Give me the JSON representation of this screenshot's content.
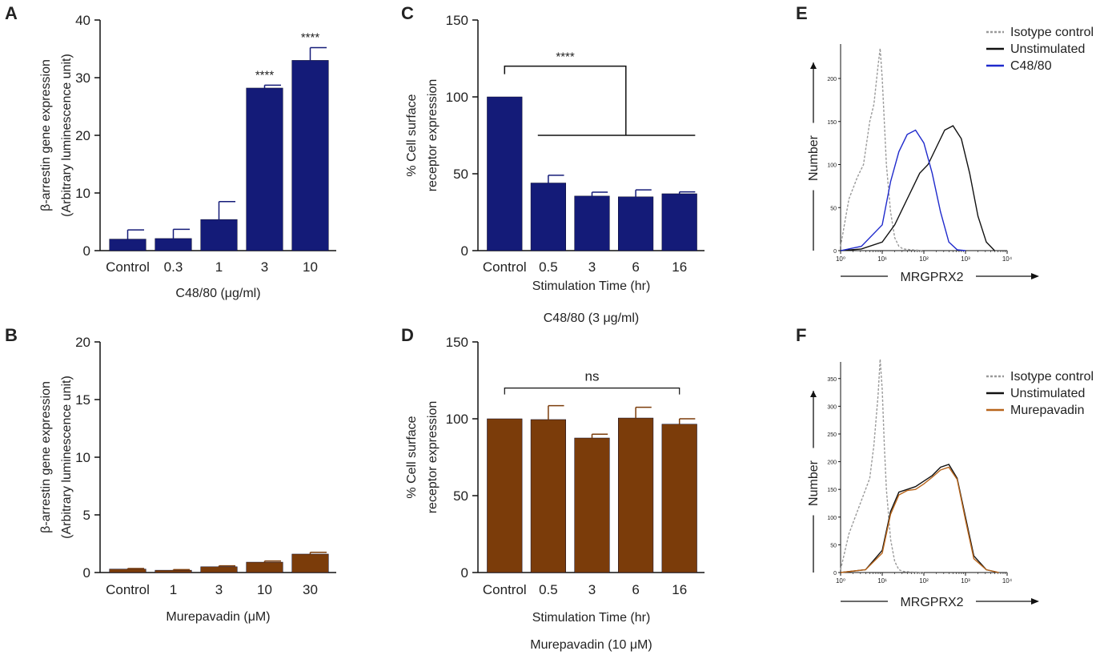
{
  "colors": {
    "navy": "#141B78",
    "brown": "#7B3C0A",
    "blue_line": "#1F2ACC",
    "orange_line": "#B8651B",
    "gray_dash": "#9A9A9A",
    "black": "#111111"
  },
  "chart_data": [
    {
      "id": "A",
      "panel_letter": "A",
      "type": "bar",
      "title": "",
      "ylabel_line1": "β-arrestin gene expression",
      "ylabel_line2": "(Arbitrary luminescence unit)",
      "xlabel": "C48/80 (μg/ml)",
      "categories": [
        "Control",
        "0.3",
        "1",
        "3",
        "10"
      ],
      "values": [
        2.0,
        2.1,
        5.4,
        28.2,
        33.0
      ],
      "errors": [
        1.6,
        1.6,
        3.1,
        0.5,
        2.2
      ],
      "annotations": [
        "",
        "",
        "",
        "****",
        "****"
      ],
      "ylim": [
        0,
        40
      ],
      "yticks": [
        "0",
        "10",
        "20",
        "30",
        "40"
      ],
      "color": "navy"
    },
    {
      "id": "B",
      "panel_letter": "B",
      "type": "bar",
      "title": "",
      "ylabel_line1": "β-arrestin gene expression",
      "ylabel_line2": "(Arbitrary luminescence unit)",
      "xlabel": "Murepavadin (μM)",
      "categories": [
        "Control",
        "1",
        "3",
        "10",
        "30"
      ],
      "values": [
        0.3,
        0.2,
        0.5,
        0.9,
        1.6
      ],
      "errors": [
        0.05,
        0.05,
        0.08,
        0.1,
        0.15
      ],
      "annotations": [
        "",
        "",
        "",
        "",
        ""
      ],
      "ylim": [
        0,
        20
      ],
      "yticks": [
        "0",
        "5",
        "10",
        "15",
        "20"
      ],
      "color": "brown"
    },
    {
      "id": "C",
      "panel_letter": "C",
      "type": "bar",
      "title": "",
      "ylabel_line1": "% Cell surface",
      "ylabel_line2": "receptor expression",
      "xlabel": "Stimulation Time (hr)",
      "xlabel2": "C48/80 (3 μg/ml)",
      "categories": [
        "Control",
        "0.5",
        "3",
        "6",
        "16"
      ],
      "values": [
        100,
        44,
        35.5,
        35,
        37
      ],
      "errors": [
        0,
        5,
        2.5,
        4.5,
        1.2
      ],
      "bracket_label": "****",
      "bracket_style": "group",
      "ylim": [
        0,
        150
      ],
      "yticks": [
        "0",
        "50",
        "100",
        "150"
      ],
      "color": "navy"
    },
    {
      "id": "D",
      "panel_letter": "D",
      "type": "bar",
      "title": "",
      "ylabel_line1": "% Cell surface",
      "ylabel_line2": "receptor expression",
      "xlabel": "Stimulation Time (hr)",
      "xlabel2": "Murepavadin (10 μM)",
      "categories": [
        "Control",
        "0.5",
        "3",
        "6",
        "16"
      ],
      "values": [
        100,
        99.5,
        87.5,
        100.5,
        96.5
      ],
      "errors": [
        0,
        9,
        2.5,
        7,
        3.5
      ],
      "bracket_label": "ns",
      "bracket_style": "simple",
      "ylim": [
        0,
        150
      ],
      "yticks": [
        "0",
        "50",
        "100",
        "150"
      ],
      "color": "brown"
    },
    {
      "id": "E",
      "panel_letter": "E",
      "type": "line",
      "ylabel": "Number",
      "xlabel": "MRGPRX2",
      "xticks": [
        "10⁰",
        "10¹",
        "10²",
        "10³",
        "10⁴"
      ],
      "yticks": [
        "0",
        "50",
        "100",
        "150",
        "200"
      ],
      "ylim": [
        0,
        240
      ],
      "legend": [
        "Isotype control",
        "Unstimulated",
        "C48/80"
      ],
      "legend_colors": [
        "gray_dash",
        "black",
        "blue_line"
      ],
      "series": [
        {
          "name": "Isotype control",
          "style": "dashed",
          "color": "gray_dash",
          "x": [
            0,
            0.2,
            0.4,
            0.55,
            0.7,
            0.8,
            0.9,
            0.95,
            1.0,
            1.05,
            1.1,
            1.2,
            1.3,
            1.4,
            1.5,
            1.7,
            2.0
          ],
          "y": [
            5,
            60,
            85,
            100,
            150,
            170,
            215,
            235,
            200,
            150,
            100,
            45,
            15,
            5,
            2,
            1,
            0
          ]
        },
        {
          "name": "Unstimulated",
          "style": "solid",
          "color": "black",
          "x": [
            0,
            0.5,
            1.0,
            1.3,
            1.6,
            1.9,
            2.1,
            2.3,
            2.5,
            2.7,
            2.9,
            3.1,
            3.3,
            3.5,
            3.7
          ],
          "y": [
            0,
            2,
            10,
            30,
            60,
            90,
            100,
            120,
            140,
            145,
            130,
            90,
            40,
            10,
            0
          ]
        },
        {
          "name": "C48/80",
          "style": "solid",
          "color": "blue_line",
          "x": [
            0,
            0.5,
            1.0,
            1.2,
            1.4,
            1.6,
            1.8,
            2.0,
            2.2,
            2.4,
            2.6,
            2.8,
            3.0
          ],
          "y": [
            0,
            5,
            30,
            80,
            115,
            135,
            140,
            125,
            90,
            45,
            10,
            1,
            0
          ]
        }
      ]
    },
    {
      "id": "F",
      "panel_letter": "F",
      "type": "line",
      "ylabel": "Number",
      "xlabel": "MRGPRX2",
      "xticks": [
        "10⁰",
        "10¹",
        "10²",
        "10³",
        "10⁴"
      ],
      "yticks": [
        "0",
        "50",
        "100",
        "150",
        "200",
        "250",
        "300",
        "350"
      ],
      "ylim": [
        0,
        380
      ],
      "legend": [
        "Isotype control",
        "Unstimulated",
        "Murepavadin"
      ],
      "legend_colors": [
        "gray_dash",
        "black",
        "orange_line"
      ],
      "series": [
        {
          "name": "Isotype control",
          "style": "dashed",
          "color": "gray_dash",
          "x": [
            0,
            0.2,
            0.4,
            0.55,
            0.7,
            0.8,
            0.9,
            0.95,
            1.0,
            1.05,
            1.1,
            1.2,
            1.3,
            1.4,
            1.5,
            1.7,
            2.0
          ],
          "y": [
            5,
            70,
            110,
            140,
            170,
            230,
            320,
            385,
            330,
            230,
            150,
            60,
            20,
            5,
            2,
            1,
            0
          ]
        },
        {
          "name": "Unstimulated",
          "style": "solid",
          "color": "black",
          "x": [
            0,
            0.6,
            1.0,
            1.2,
            1.4,
            1.6,
            1.8,
            2.0,
            2.2,
            2.4,
            2.6,
            2.8,
            3.0,
            3.2,
            3.5,
            3.8
          ],
          "y": [
            0,
            5,
            40,
            110,
            145,
            150,
            155,
            165,
            175,
            190,
            195,
            170,
            100,
            30,
            5,
            0
          ]
        },
        {
          "name": "Murepavadin",
          "style": "solid",
          "color": "orange_line",
          "x": [
            0,
            0.6,
            1.0,
            1.2,
            1.4,
            1.6,
            1.8,
            2.0,
            2.2,
            2.4,
            2.6,
            2.8,
            3.0,
            3.2,
            3.5,
            3.8
          ],
          "y": [
            0,
            5,
            35,
            105,
            140,
            148,
            150,
            160,
            172,
            185,
            190,
            168,
            95,
            25,
            5,
            0
          ]
        }
      ]
    }
  ]
}
